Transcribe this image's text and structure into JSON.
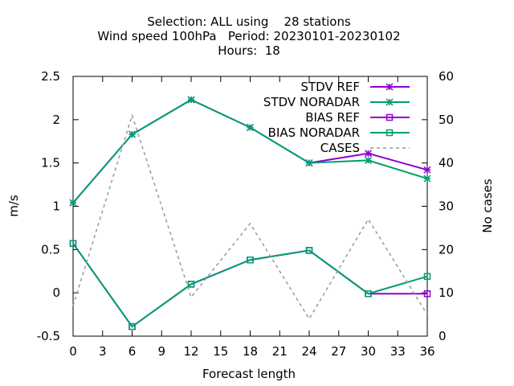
{
  "chart_data": {
    "type": "line",
    "title_lines": [
      "Selection: ALL using    28 stations",
      "Wind speed 100hPa   Period: 20230101-20230102",
      "Hours:  18"
    ],
    "xlabel": "Forecast length",
    "ylabel": "m/s",
    "y2label": "No cases",
    "xlim": [
      0,
      36
    ],
    "ylim": [
      -0.5,
      2.5
    ],
    "y2lim": [
      0,
      60
    ],
    "xticks": [
      0,
      3,
      6,
      9,
      12,
      15,
      18,
      21,
      24,
      27,
      30,
      33,
      36
    ],
    "yticks": [
      -0.5,
      0,
      0.5,
      1,
      1.5,
      2,
      2.5
    ],
    "ytick_labels": [
      "-0.5",
      "0",
      "0.5",
      "1",
      "1.5",
      "2",
      "2.5"
    ],
    "y2ticks": [
      0,
      10,
      20,
      30,
      40,
      50,
      60
    ],
    "legend_position": "top-right",
    "series": [
      {
        "name": "STDV REF",
        "axis": "y",
        "color": "#9400d3",
        "marker": "star",
        "dash": false,
        "x": [
          0,
          6,
          12,
          18,
          24,
          30,
          36
        ],
        "values": [
          1.04,
          1.83,
          2.23,
          1.91,
          1.5,
          1.61,
          1.42
        ]
      },
      {
        "name": "STDV NORADAR",
        "axis": "y",
        "color": "#009e73",
        "marker": "star",
        "dash": false,
        "x": [
          0,
          6,
          12,
          18,
          24,
          30,
          36
        ],
        "values": [
          1.04,
          1.83,
          2.23,
          1.91,
          1.5,
          1.53,
          1.32
        ]
      },
      {
        "name": "BIAS REF",
        "axis": "y",
        "color": "#9400d3",
        "marker": "square",
        "dash": false,
        "x": [
          0,
          6,
          12,
          18,
          24,
          30,
          36
        ],
        "values": [
          0.57,
          -0.39,
          0.1,
          0.38,
          0.49,
          -0.01,
          -0.01
        ]
      },
      {
        "name": "BIAS NORADAR",
        "axis": "y",
        "color": "#009e73",
        "marker": "square",
        "dash": false,
        "x": [
          0,
          6,
          12,
          18,
          24,
          30,
          36
        ],
        "values": [
          0.57,
          -0.39,
          0.1,
          0.38,
          0.49,
          -0.01,
          0.19
        ]
      },
      {
        "name": "CASES",
        "axis": "y2",
        "color": "#999999",
        "marker": "none",
        "dash": true,
        "x": [
          0,
          6,
          12,
          18,
          24,
          30,
          36
        ],
        "values": [
          7,
          51,
          9,
          26,
          4,
          27,
          5
        ]
      }
    ]
  }
}
